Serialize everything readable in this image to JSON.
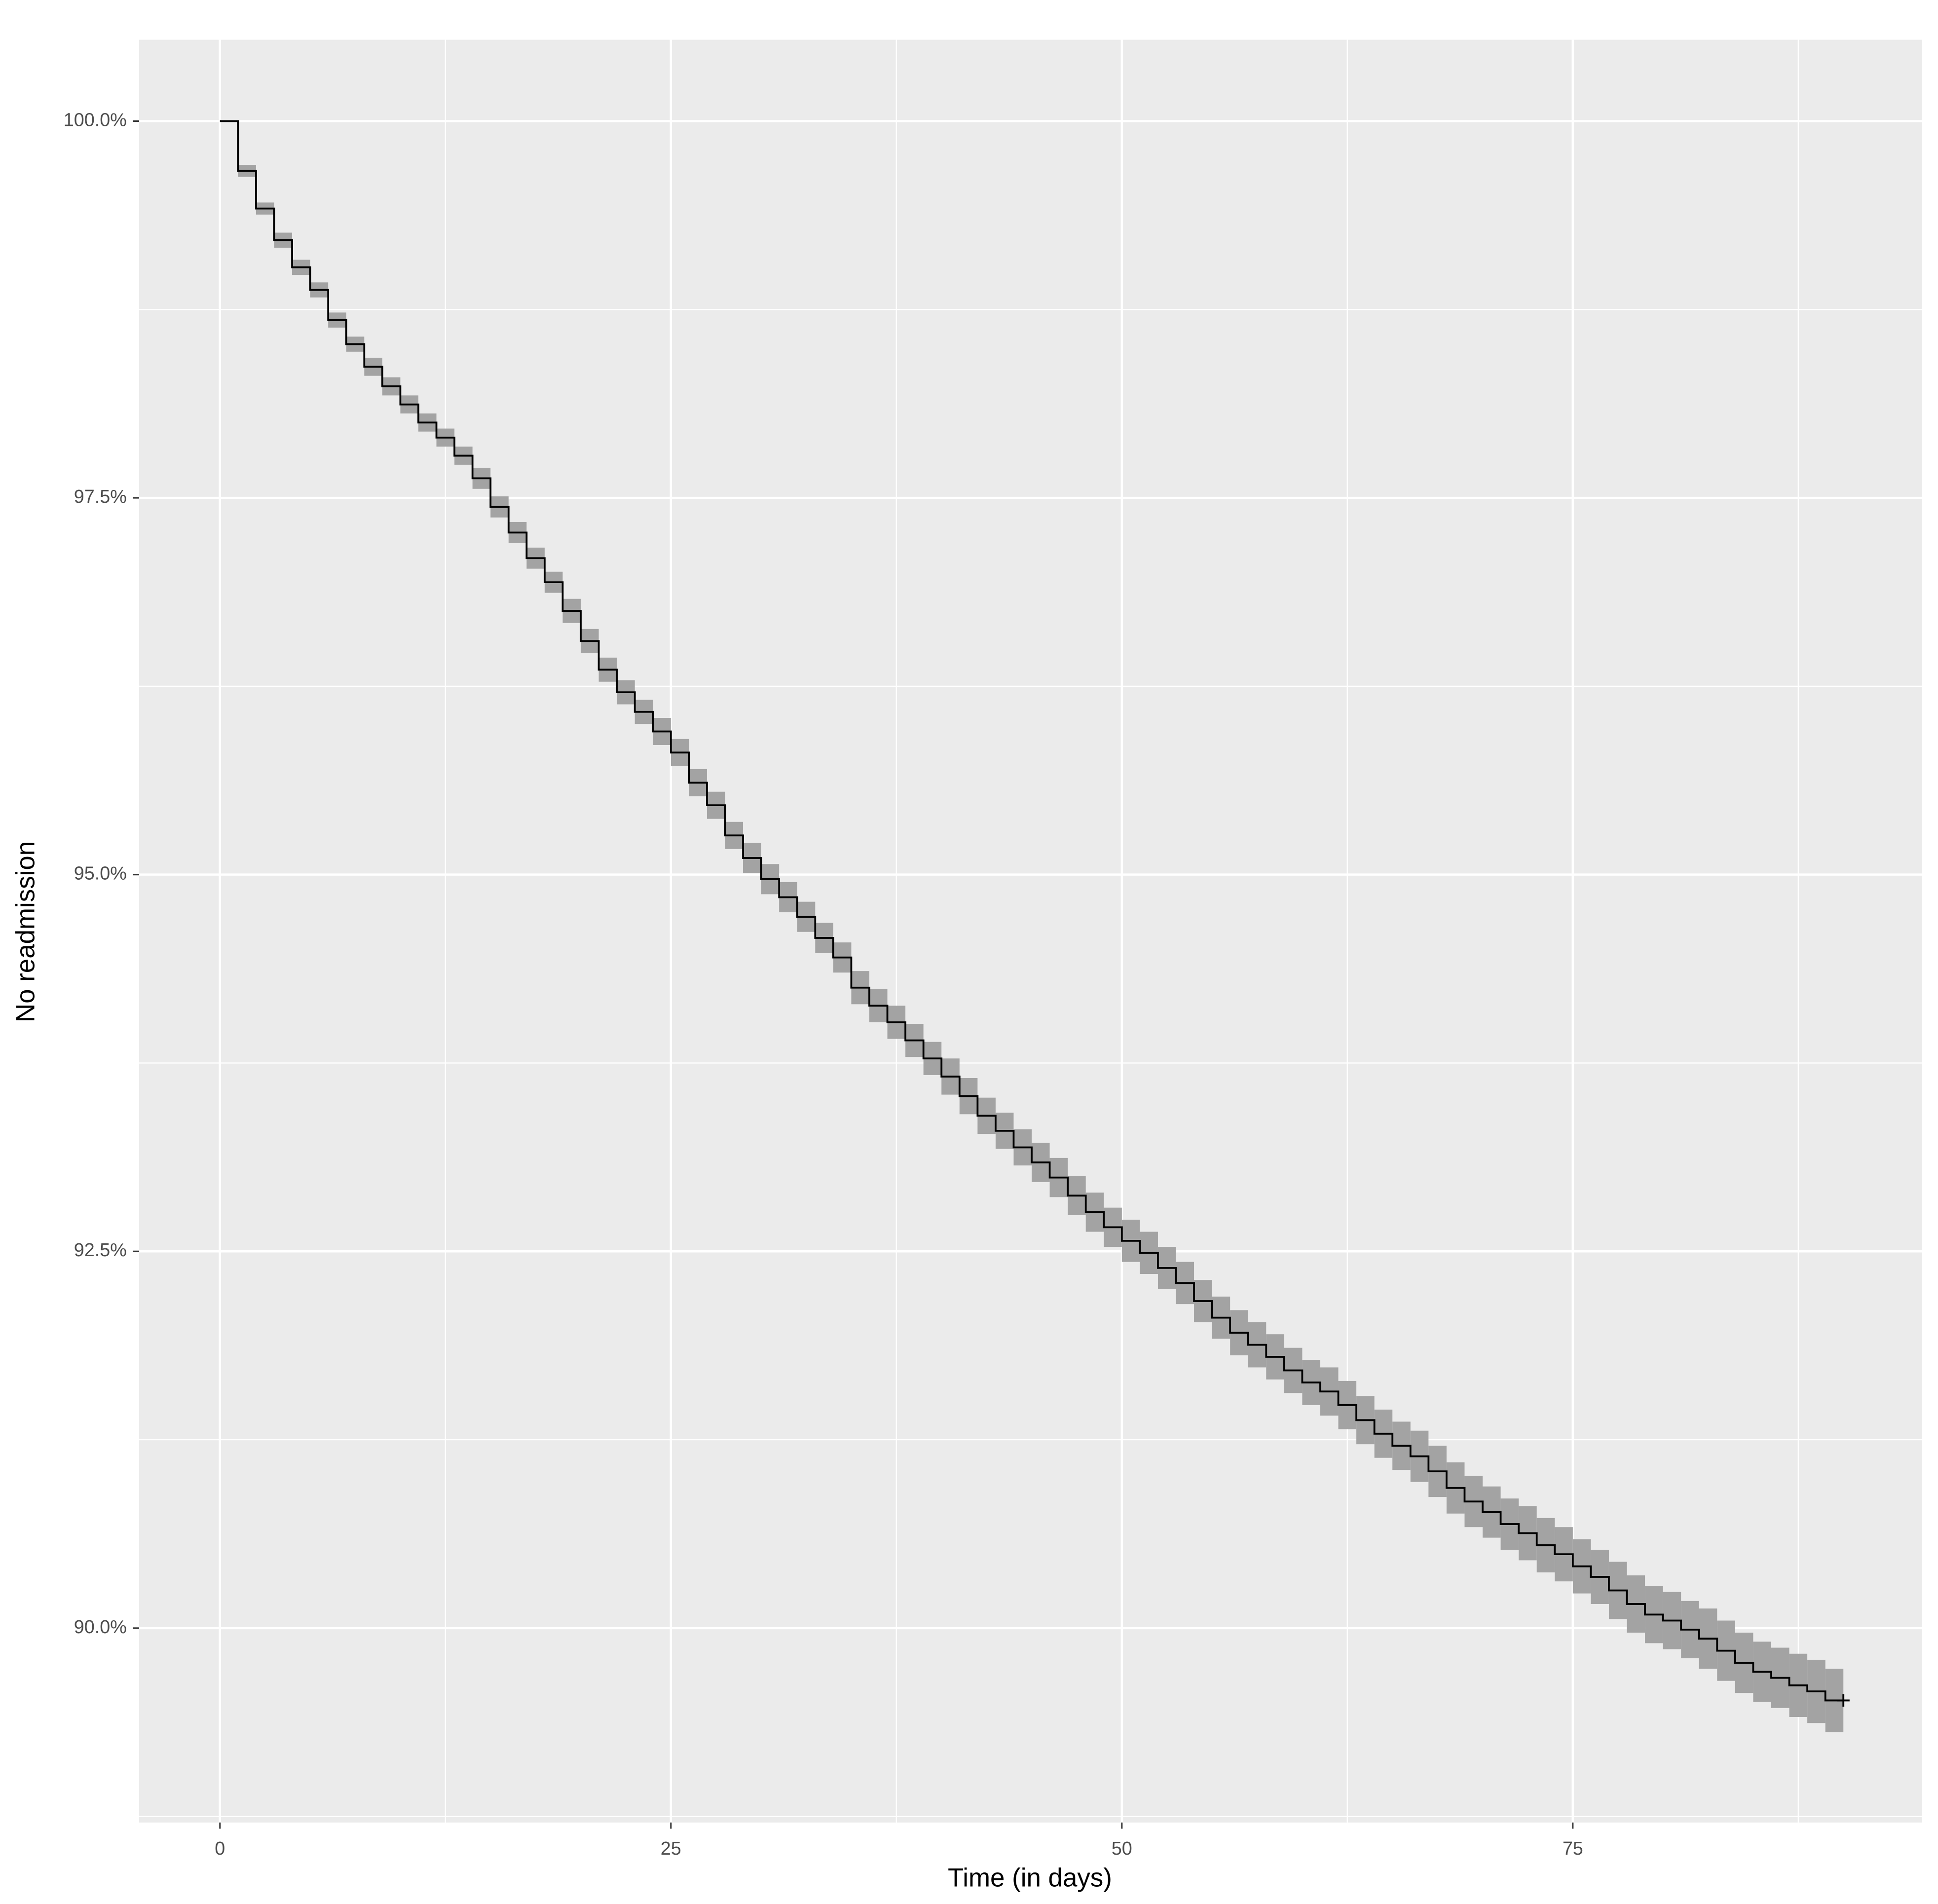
{
  "chart_data": {
    "type": "step",
    "x_label": "Time (in days)",
    "y_label": "No readmission",
    "xlim": [
      -4.48,
      94.35
    ],
    "ylim": [
      88.71,
      100.54
    ],
    "xticks": [
      0,
      25,
      50,
      75
    ],
    "yticks": [
      {
        "value": 90,
        "label": "90.0%"
      },
      {
        "value": 92.5,
        "label": "92.5%"
      },
      {
        "value": 95,
        "label": "95.0%"
      },
      {
        "value": 97.5,
        "label": "97.5%"
      },
      {
        "value": 100,
        "label": "100.0%"
      }
    ],
    "minor_xticks": [
      12.5,
      37.5,
      62.5,
      87.5
    ],
    "minor_yticks": [
      88.75,
      91.25,
      93.75,
      96.25,
      98.75
    ],
    "grid": true,
    "color": "#000000",
    "band_color": "#a3a3a3",
    "censored_marker": true,
    "x": [
      0,
      1,
      2,
      3,
      4,
      5,
      6,
      7,
      8,
      9,
      10,
      11,
      12,
      13,
      14,
      15,
      16,
      17,
      18,
      19,
      20,
      21,
      22,
      23,
      24,
      25,
      26,
      27,
      28,
      29,
      30,
      31,
      32,
      33,
      34,
      35,
      36,
      37,
      38,
      39,
      40,
      41,
      42,
      43,
      44,
      45,
      46,
      47,
      48,
      49,
      50,
      51,
      52,
      53,
      54,
      55,
      56,
      57,
      58,
      59,
      60,
      61,
      62,
      63,
      64,
      65,
      66,
      67,
      68,
      69,
      70,
      71,
      72,
      73,
      74,
      75,
      76,
      77,
      78,
      79,
      80,
      81,
      82,
      83,
      84,
      85,
      86,
      87,
      88,
      89,
      90
    ],
    "values": [
      100,
      99.67,
      99.42,
      99.21,
      99.03,
      98.88,
      98.68,
      98.52,
      98.37,
      98.24,
      98.12,
      98.0,
      97.9,
      97.78,
      97.63,
      97.44,
      97.27,
      97.1,
      96.94,
      96.75,
      96.55,
      96.36,
      96.21,
      96.08,
      95.95,
      95.81,
      95.61,
      95.46,
      95.26,
      95.11,
      94.97,
      94.85,
      94.72,
      94.58,
      94.45,
      94.25,
      94.13,
      94.02,
      93.9,
      93.78,
      93.66,
      93.53,
      93.4,
      93.3,
      93.19,
      93.09,
      92.99,
      92.87,
      92.76,
      92.66,
      92.57,
      92.49,
      92.39,
      92.29,
      92.17,
      92.06,
      91.96,
      91.88,
      91.8,
      91.71,
      91.63,
      91.57,
      91.48,
      91.38,
      91.29,
      91.21,
      91.14,
      91.04,
      90.93,
      90.84,
      90.77,
      90.69,
      90.63,
      90.55,
      90.49,
      90.41,
      90.34,
      90.25,
      90.16,
      90.09,
      90.05,
      89.99,
      89.93,
      89.85,
      89.77,
      89.71,
      89.67,
      89.62,
      89.58,
      89.52,
      89.52
    ],
    "lower": [
      100,
      99.63,
      99.38,
      99.16,
      98.98,
      98.83,
      98.63,
      98.47,
      98.31,
      98.18,
      98.06,
      97.94,
      97.84,
      97.72,
      97.56,
      97.37,
      97.2,
      97.03,
      96.87,
      96.67,
      96.47,
      96.28,
      96.13,
      96.0,
      95.86,
      95.72,
      95.52,
      95.37,
      95.17,
      95.01,
      94.87,
      94.75,
      94.62,
      94.48,
      94.35,
      94.14,
      94.02,
      93.91,
      93.79,
      93.67,
      93.54,
      93.41,
      93.28,
      93.18,
      93.07,
      92.96,
      92.86,
      92.74,
      92.63,
      92.53,
      92.43,
      92.35,
      92.25,
      92.15,
      92.03,
      91.92,
      91.81,
      91.73,
      91.65,
      91.56,
      91.48,
      91.41,
      91.32,
      91.22,
      91.13,
      91.05,
      90.97,
      90.87,
      90.76,
      90.67,
      90.6,
      90.52,
      90.45,
      90.37,
      90.31,
      90.23,
      90.16,
      90.06,
      89.97,
      89.9,
      89.86,
      89.8,
      89.73,
      89.65,
      89.57,
      89.51,
      89.47,
      89.41,
      89.37,
      89.31,
      89.31
    ],
    "upper": [
      100,
      99.71,
      99.46,
      99.26,
      99.08,
      98.93,
      98.73,
      98.57,
      98.43,
      98.3,
      98.18,
      98.06,
      97.96,
      97.84,
      97.7,
      97.51,
      97.34,
      97.17,
      97.01,
      96.83,
      96.63,
      96.44,
      96.29,
      96.16,
      96.04,
      95.9,
      95.7,
      95.55,
      95.35,
      95.21,
      95.07,
      94.95,
      94.82,
      94.68,
      94.55,
      94.36,
      94.24,
      94.13,
      94.01,
      93.89,
      93.78,
      93.65,
      93.52,
      93.42,
      93.31,
      93.22,
      93.12,
      93.0,
      92.89,
      92.79,
      92.71,
      92.63,
      92.53,
      92.43,
      92.31,
      92.2,
      92.11,
      92.03,
      91.95,
      91.86,
      91.78,
      91.73,
      91.64,
      91.54,
      91.45,
      91.37,
      91.31,
      91.21,
      91.1,
      91.01,
      90.94,
      90.86,
      90.81,
      90.73,
      90.67,
      90.59,
      90.52,
      90.44,
      90.35,
      90.28,
      90.24,
      90.18,
      90.13,
      90.05,
      89.97,
      89.91,
      89.87,
      89.83,
      89.79,
      89.73,
      89.73
    ]
  }
}
